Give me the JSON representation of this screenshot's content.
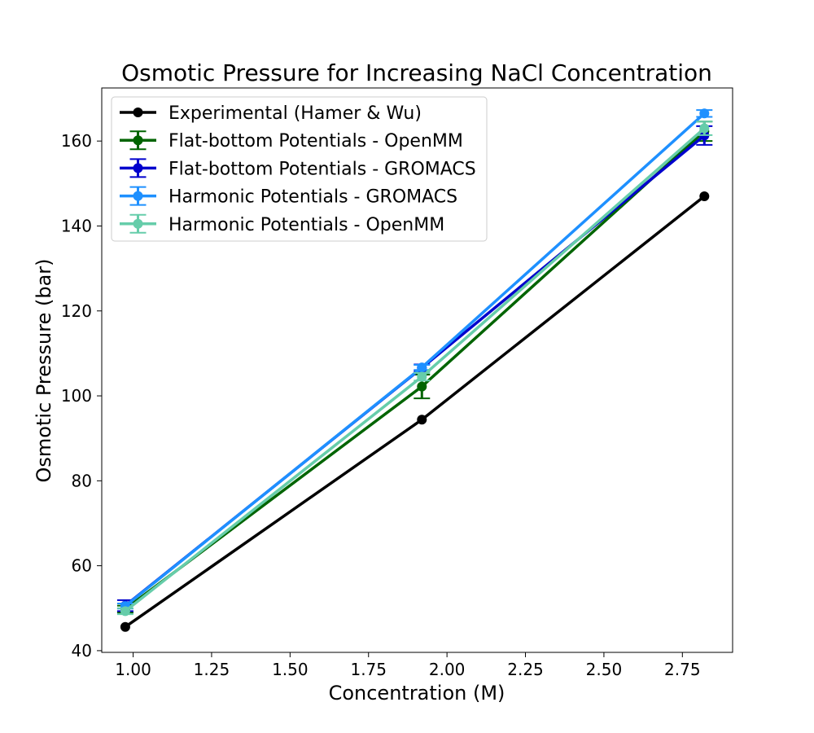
{
  "chart_data": {
    "type": "line",
    "title": "Osmotic Pressure for Increasing NaCl Concentration",
    "xlabel": "Concentration (M)",
    "ylabel": "Osmotic Pressure (bar)",
    "xlim": [
      0.9,
      2.91
    ],
    "ylim": [
      39.6,
      172.5
    ],
    "xticks": [
      1.0,
      1.25,
      1.5,
      1.75,
      2.0,
      2.25,
      2.5,
      2.75
    ],
    "xtick_labels": [
      "1.00",
      "1.25",
      "1.50",
      "1.75",
      "2.00",
      "2.25",
      "2.50",
      "2.75"
    ],
    "yticks": [
      40,
      60,
      80,
      100,
      120,
      140,
      160
    ],
    "ytick_labels": [
      "40",
      "60",
      "80",
      "100",
      "120",
      "140",
      "160"
    ],
    "grid": false,
    "legend_position": "top-left",
    "x": [
      0.975,
      1.92,
      2.82
    ],
    "series": [
      {
        "name": "Experimental (Hamer & Wu)",
        "color": "#000000",
        "values": [
          45.6,
          94.4,
          147.0
        ],
        "errors": null
      },
      {
        "name": "Flat-bottom Potentials - OpenMM",
        "color": "#006400",
        "values": [
          49.8,
          102.2,
          162.3
        ],
        "errors": [
          0.8,
          2.8,
          2.3
        ]
      },
      {
        "name": "Flat-bottom Potentials - GROMACS",
        "color": "#0000cd",
        "values": [
          50.6,
          106.6,
          161.3
        ],
        "errors": [
          1.3,
          0.8,
          2.2
        ]
      },
      {
        "name": "Harmonic Potentials - GROMACS",
        "color": "#1e90ff",
        "values": [
          50.5,
          106.7,
          166.5
        ],
        "errors": [
          0.6,
          0.6,
          0.8
        ]
      },
      {
        "name": "Harmonic Potentials - OpenMM",
        "color": "#66cdaa",
        "values": [
          49.3,
          104.5,
          163.0
        ],
        "errors": [
          0.7,
          0.9,
          1.6
        ]
      }
    ]
  }
}
